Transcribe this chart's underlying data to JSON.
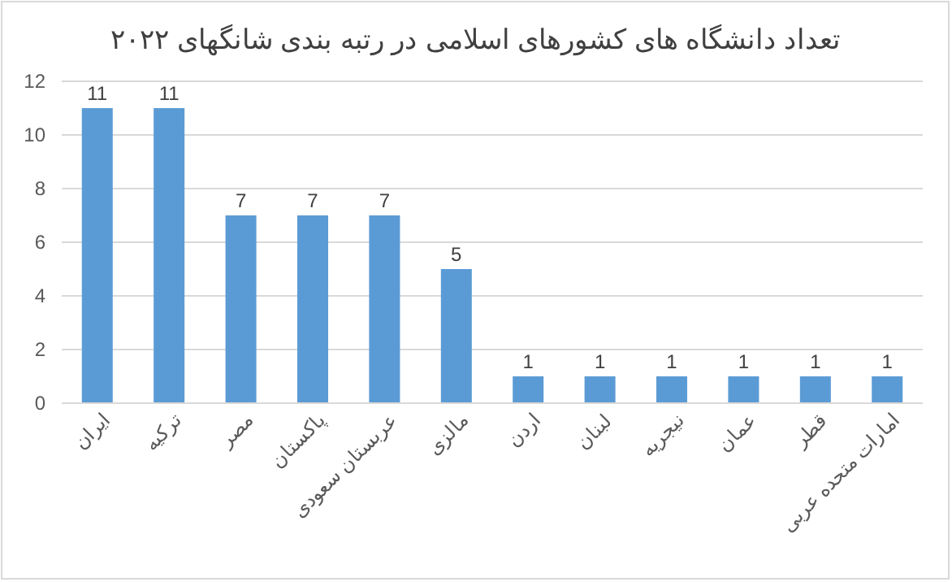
{
  "chart_data": {
    "type": "bar",
    "title": "تعداد دانشگاه های کشورهای اسلامی در رتبه بندی شانگهای ۲۰۲۲",
    "categories": [
      "ایران",
      "ترکیه",
      "مصر",
      "پاکستان",
      "عربستان سعودی",
      "مالزی",
      "اردن",
      "لبنان",
      "نیجریه",
      "عمان",
      "قطر",
      "امارات متحده عربی"
    ],
    "values": [
      11,
      11,
      7,
      7,
      7,
      5,
      1,
      1,
      1,
      1,
      1,
      1
    ],
    "color": "#5b9bd5",
    "ylim": [
      0,
      12
    ],
    "yticks": [
      0,
      2,
      4,
      6,
      8,
      10,
      12
    ],
    "grid": "y",
    "data_labels": true
  }
}
